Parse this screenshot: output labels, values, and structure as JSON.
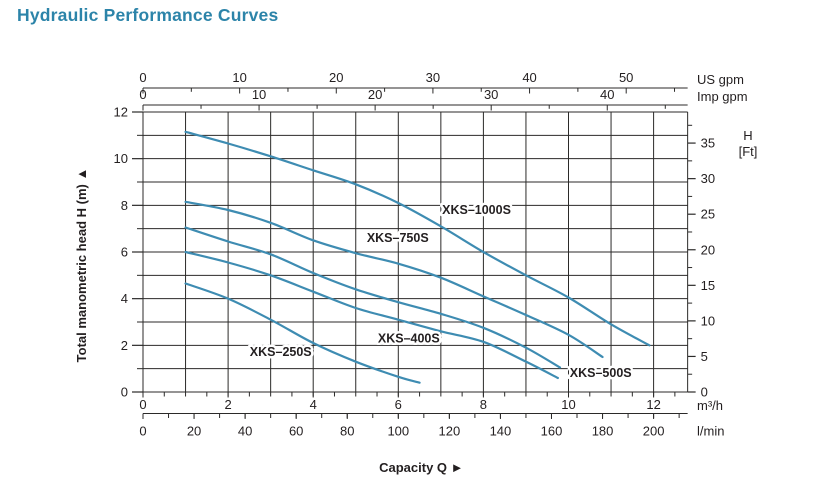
{
  "title": "Hydraulic Performance Curves",
  "colors": {
    "title": "#2c84a9",
    "curve": "#3e8cb2",
    "grid": "#2b2a29",
    "text": "#231f20",
    "background": "#ffffff"
  },
  "chart_data": {
    "type": "line",
    "xlabel": "Capacity Q",
    "xlabel_arrow": "►",
    "ylabel": "Total manometric head H (m)",
    "ylabel_arrow": "▲",
    "x_axes": {
      "m3h": {
        "unit": "m³/h",
        "ticks": [
          0,
          2,
          4,
          6,
          8,
          10,
          12
        ],
        "minor_step": 0.5,
        "minor_max": 12.5,
        "scale_to_m3h": 1
      },
      "lmin": {
        "unit": "l/min",
        "ticks": [
          0,
          20,
          40,
          60,
          80,
          100,
          120,
          140,
          160,
          180,
          200
        ],
        "minor_step": 10,
        "minor_max": 210,
        "scale_to_m3h": 0.06
      },
      "us_gpm": {
        "unit": "US gpm",
        "ticks": [
          0,
          10,
          20,
          30,
          40,
          50
        ],
        "minor_step": 5,
        "minor_max": 55,
        "scale_to_m3h": 0.22712
      },
      "imp_gpm": {
        "unit": "Imp gpm",
        "ticks": [
          0,
          10,
          20,
          30,
          40
        ],
        "minor_step": 5,
        "minor_max": 45,
        "scale_to_m3h": 0.27277
      }
    },
    "y_axes": {
      "m": {
        "ticks": [
          0,
          2,
          4,
          6,
          8,
          10,
          12
        ],
        "grid_step": 1,
        "range": [
          0,
          12
        ]
      },
      "ft": {
        "unit_line1": "H",
        "unit_line2": "[Ft]",
        "ticks": [
          0,
          5,
          10,
          15,
          20,
          25,
          30,
          35
        ],
        "minor_step": 2.5,
        "minor_max": 37.5,
        "scale_to_m": 0.3048
      }
    },
    "x_range_m3h": [
      0,
      12.8
    ],
    "grid": true,
    "series": [
      {
        "name": "XKS–1000S",
        "label_q": 7.03,
        "label_h": 7.8,
        "points": [
          [
            1,
            11.15
          ],
          [
            2,
            10.65
          ],
          [
            3,
            10.1
          ],
          [
            4,
            9.5
          ],
          [
            5,
            8.9
          ],
          [
            6,
            8.1
          ],
          [
            7,
            7.1
          ],
          [
            8,
            6.0
          ],
          [
            9,
            5.0
          ],
          [
            10,
            4.05
          ],
          [
            11,
            2.9
          ],
          [
            11.9,
            2.0
          ]
        ]
      },
      {
        "name": "XKS–750S",
        "label_q": 5.26,
        "label_h": 6.6,
        "points": [
          [
            1,
            8.15
          ],
          [
            2,
            7.8
          ],
          [
            3,
            7.25
          ],
          [
            4,
            6.5
          ],
          [
            5,
            5.95
          ],
          [
            6,
            5.5
          ],
          [
            7,
            4.9
          ],
          [
            8,
            4.1
          ],
          [
            9,
            3.3
          ],
          [
            10,
            2.45
          ],
          [
            10.8,
            1.5
          ]
        ]
      },
      {
        "name": "XKS–500S",
        "label_q": 10.03,
        "label_h": 0.81,
        "points": [
          [
            1,
            7.05
          ],
          [
            2,
            6.45
          ],
          [
            3,
            5.9
          ],
          [
            4,
            5.1
          ],
          [
            5,
            4.4
          ],
          [
            6,
            3.85
          ],
          [
            7,
            3.35
          ],
          [
            8,
            2.75
          ],
          [
            9,
            1.9
          ],
          [
            9.8,
            1.05
          ]
        ]
      },
      {
        "name": "XKS–400S",
        "label_q": 5.52,
        "label_h": 2.3,
        "points": [
          [
            1,
            6.0
          ],
          [
            2,
            5.55
          ],
          [
            3,
            5.0
          ],
          [
            4,
            4.3
          ],
          [
            5,
            3.6
          ],
          [
            6,
            3.1
          ],
          [
            7,
            2.6
          ],
          [
            8,
            2.15
          ],
          [
            9,
            1.3
          ],
          [
            9.75,
            0.6
          ]
        ]
      },
      {
        "name": "XKS–250S",
        "label_q": 2.51,
        "label_h": 1.72,
        "points": [
          [
            1,
            4.65
          ],
          [
            2,
            4.0
          ],
          [
            3,
            3.1
          ],
          [
            4,
            2.1
          ],
          [
            5,
            1.3
          ],
          [
            6,
            0.65
          ],
          [
            6.5,
            0.4
          ]
        ]
      }
    ]
  }
}
